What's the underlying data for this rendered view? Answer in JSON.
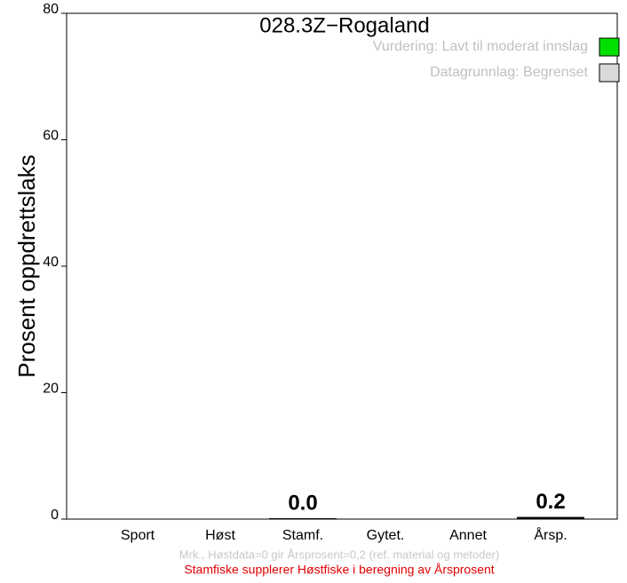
{
  "chart_data": {
    "type": "bar",
    "title": "028.3Z−Rogaland",
    "ylabel": "Prosent oppdrettslaks",
    "categories": [
      "Sport",
      "Høst",
      "Stamf.",
      "Gytet.",
      "Annet",
      "Årsp."
    ],
    "values": [
      null,
      null,
      0,
      null,
      null,
      0.2
    ],
    "value_labels": [
      null,
      null,
      "0.0",
      null,
      null,
      "0.2"
    ],
    "color": "#000000",
    "ylim": [
      0,
      80
    ],
    "yticks": [
      0,
      20,
      40,
      60,
      80
    ],
    "legend": [
      {
        "label": "Vurdering: Lavt til moderat innslag",
        "color": "#00e000"
      },
      {
        "label": "Datagrunnlag: Begrenset",
        "color": "#d9d9d9"
      }
    ],
    "annotations": [
      "Mrk., Høstdata=0 gir Årsprosent=0,2 (ref. material og metoder)",
      "Stamfiske supplerer Høstfiske i beregning av Årsprosent"
    ]
  }
}
